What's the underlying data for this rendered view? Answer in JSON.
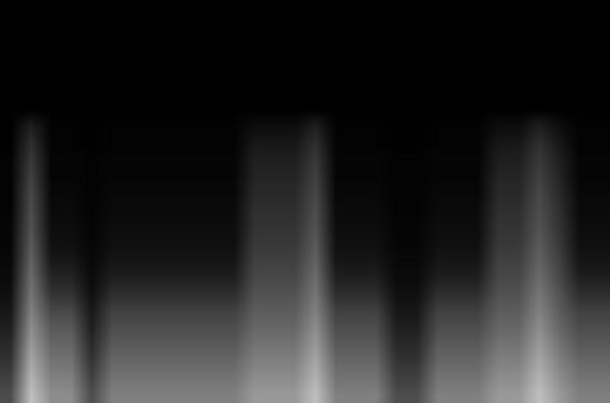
{
  "chart_data": {
    "type": "heatmap",
    "tick_labels": false,
    "zlim": [
      0,
      1
    ],
    "cells": [
      [
        0.3,
        0.75,
        0.55,
        0.55,
        0.3,
        0.5,
        0.5,
        0.5,
        0.5,
        0.5,
        0.5,
        0.5,
        0.6,
        0.6,
        0.6,
        0.75,
        0.5,
        0.5,
        0.5,
        0.3,
        0.3,
        0.5,
        0.5,
        0.5,
        0.6,
        0.6,
        0.75,
        0.6,
        0.5,
        0.5
      ],
      [
        0.25,
        0.7,
        0.5,
        0.5,
        0.25,
        0.45,
        0.45,
        0.45,
        0.45,
        0.45,
        0.45,
        0.45,
        0.55,
        0.55,
        0.55,
        0.7,
        0.45,
        0.45,
        0.45,
        0.25,
        0.25,
        0.45,
        0.45,
        0.45,
        0.55,
        0.55,
        0.7,
        0.55,
        0.45,
        0.45
      ],
      [
        0.2,
        0.65,
        0.45,
        0.45,
        0.2,
        0.4,
        0.4,
        0.4,
        0.4,
        0.4,
        0.4,
        0.4,
        0.5,
        0.5,
        0.5,
        0.65,
        0.4,
        0.4,
        0.4,
        0.2,
        0.2,
        0.4,
        0.4,
        0.4,
        0.5,
        0.5,
        0.65,
        0.5,
        0.4,
        0.4
      ],
      [
        0.16,
        0.6,
        0.4,
        0.4,
        0.16,
        0.35,
        0.35,
        0.35,
        0.35,
        0.35,
        0.35,
        0.35,
        0.45,
        0.45,
        0.45,
        0.6,
        0.35,
        0.35,
        0.35,
        0.16,
        0.16,
        0.35,
        0.35,
        0.35,
        0.45,
        0.45,
        0.6,
        0.45,
        0.35,
        0.35
      ],
      [
        0.12,
        0.55,
        0.35,
        0.35,
        0.12,
        0.3,
        0.3,
        0.3,
        0.3,
        0.3,
        0.3,
        0.3,
        0.4,
        0.4,
        0.4,
        0.55,
        0.3,
        0.3,
        0.3,
        0.12,
        0.12,
        0.3,
        0.3,
        0.3,
        0.4,
        0.4,
        0.55,
        0.4,
        0.3,
        0.3
      ],
      [
        0.09,
        0.5,
        0.28,
        0.28,
        0.09,
        0.25,
        0.25,
        0.25,
        0.25,
        0.25,
        0.25,
        0.25,
        0.36,
        0.36,
        0.36,
        0.5,
        0.25,
        0.25,
        0.25,
        0.09,
        0.09,
        0.25,
        0.25,
        0.25,
        0.36,
        0.36,
        0.5,
        0.36,
        0.25,
        0.25
      ],
      [
        0.06,
        0.46,
        0.2,
        0.2,
        0.06,
        0.18,
        0.18,
        0.18,
        0.18,
        0.18,
        0.18,
        0.18,
        0.32,
        0.32,
        0.32,
        0.46,
        0.18,
        0.18,
        0.18,
        0.06,
        0.06,
        0.18,
        0.18,
        0.18,
        0.32,
        0.32,
        0.46,
        0.32,
        0.18,
        0.18
      ],
      [
        0.04,
        0.42,
        0.14,
        0.14,
        0.04,
        0.12,
        0.12,
        0.12,
        0.12,
        0.12,
        0.12,
        0.12,
        0.28,
        0.28,
        0.28,
        0.42,
        0.12,
        0.12,
        0.12,
        0.04,
        0.04,
        0.12,
        0.12,
        0.12,
        0.28,
        0.28,
        0.42,
        0.28,
        0.12,
        0.12
      ],
      [
        0.03,
        0.38,
        0.09,
        0.09,
        0.03,
        0.08,
        0.08,
        0.08,
        0.08,
        0.08,
        0.08,
        0.08,
        0.25,
        0.25,
        0.25,
        0.38,
        0.08,
        0.08,
        0.08,
        0.03,
        0.03,
        0.08,
        0.08,
        0.08,
        0.25,
        0.25,
        0.38,
        0.25,
        0.08,
        0.08
      ],
      [
        0.02,
        0.35,
        0.06,
        0.06,
        0.02,
        0.06,
        0.06,
        0.06,
        0.06,
        0.06,
        0.06,
        0.06,
        0.22,
        0.22,
        0.22,
        0.35,
        0.06,
        0.06,
        0.06,
        0.02,
        0.02,
        0.06,
        0.06,
        0.06,
        0.22,
        0.22,
        0.35,
        0.22,
        0.06,
        0.06
      ],
      [
        0.02,
        0.32,
        0.05,
        0.05,
        0.02,
        0.05,
        0.05,
        0.05,
        0.05,
        0.05,
        0.05,
        0.05,
        0.2,
        0.2,
        0.2,
        0.32,
        0.05,
        0.05,
        0.05,
        0.02,
        0.02,
        0.05,
        0.05,
        0.05,
        0.2,
        0.2,
        0.32,
        0.2,
        0.05,
        0.05
      ],
      [
        0.01,
        0.3,
        0.04,
        0.04,
        0.01,
        0.04,
        0.04,
        0.04,
        0.04,
        0.04,
        0.04,
        0.04,
        0.18,
        0.18,
        0.18,
        0.3,
        0.04,
        0.04,
        0.04,
        0.01,
        0.01,
        0.04,
        0.04,
        0.04,
        0.18,
        0.18,
        0.3,
        0.18,
        0.04,
        0.04
      ],
      [
        0.01,
        0.28,
        0.03,
        0.03,
        0.01,
        0.03,
        0.03,
        0.03,
        0.03,
        0.03,
        0.03,
        0.03,
        0.16,
        0.16,
        0.16,
        0.28,
        0.03,
        0.03,
        0.03,
        0.01,
        0.01,
        0.03,
        0.03,
        0.03,
        0.16,
        0.16,
        0.28,
        0.16,
        0.03,
        0.03
      ],
      [
        0.01,
        0.25,
        0.02,
        0.02,
        0.01,
        0.02,
        0.02,
        0.02,
        0.02,
        0.02,
        0.02,
        0.02,
        0.14,
        0.14,
        0.14,
        0.25,
        0.02,
        0.02,
        0.02,
        0.01,
        0.01,
        0.02,
        0.02,
        0.02,
        0.14,
        0.14,
        0.25,
        0.14,
        0.02,
        0.02
      ],
      [
        0.01,
        0.22,
        0.02,
        0.02,
        0.01,
        0.02,
        0.02,
        0.02,
        0.02,
        0.02,
        0.02,
        0.02,
        0.12,
        0.12,
        0.12,
        0.22,
        0.02,
        0.02,
        0.02,
        0.01,
        0.01,
        0.02,
        0.02,
        0.02,
        0.12,
        0.12,
        0.22,
        0.12,
        0.02,
        0.02
      ],
      [
        0,
        0.18,
        0.01,
        0.01,
        0,
        0.01,
        0.01,
        0.01,
        0.01,
        0.01,
        0.01,
        0.01,
        0.09,
        0.09,
        0.09,
        0.18,
        0.01,
        0.01,
        0.01,
        0,
        0,
        0.01,
        0.01,
        0.01,
        0.09,
        0.09,
        0.18,
        0.09,
        0.01,
        0.01
      ],
      [
        0,
        0.12,
        0.01,
        0.01,
        0,
        0.01,
        0.01,
        0.01,
        0.01,
        0.01,
        0.01,
        0.01,
        0.05,
        0.05,
        0.05,
        0.12,
        0.01,
        0.01,
        0.01,
        0,
        0,
        0.01,
        0.01,
        0.01,
        0.05,
        0.05,
        0.12,
        0.05,
        0.01,
        0.01
      ],
      [
        0,
        0,
        0,
        0,
        0,
        0,
        0,
        0,
        0,
        0,
        0,
        0,
        0,
        0,
        0,
        0,
        0,
        0,
        0,
        0,
        0,
        0,
        0,
        0,
        0,
        0,
        0,
        0,
        0,
        0
      ],
      [
        0,
        0,
        0,
        0,
        0,
        0,
        0,
        0,
        0,
        0,
        0,
        0,
        0,
        0,
        0,
        0,
        0,
        0,
        0,
        0,
        0,
        0,
        0,
        0,
        0,
        0,
        0,
        0,
        0,
        0
      ],
      [
        0,
        0,
        0,
        0,
        0,
        0,
        0,
        0,
        0,
        0,
        0,
        0,
        0,
        0,
        0,
        0,
        0,
        0,
        0,
        0,
        0,
        0,
        0,
        0,
        0,
        0,
        0,
        0,
        0,
        0
      ],
      [
        0,
        0,
        0,
        0,
        0,
        0,
        0,
        0,
        0,
        0,
        0,
        0,
        0,
        0,
        0,
        0,
        0,
        0,
        0,
        0,
        0,
        0,
        0,
        0,
        0,
        0,
        0,
        0,
        0,
        0
      ],
      [
        0,
        0,
        0,
        0,
        0,
        0,
        0,
        0,
        0,
        0,
        0,
        0,
        0,
        0,
        0,
        0,
        0,
        0,
        0,
        0,
        0,
        0,
        0,
        0,
        0,
        0,
        0,
        0,
        0,
        0
      ],
      [
        0,
        0,
        0,
        0,
        0,
        0,
        0,
        0,
        0,
        0,
        0,
        0,
        0,
        0,
        0,
        0,
        0,
        0,
        0,
        0,
        0,
        0,
        0,
        0,
        0,
        0,
        0,
        0,
        0,
        0
      ],
      [
        0,
        0,
        0,
        0,
        0,
        0,
        0,
        0,
        0,
        0,
        0,
        0,
        0,
        0,
        0,
        0,
        0,
        0,
        0,
        0,
        0,
        0,
        0,
        0,
        0,
        0,
        0,
        0,
        0,
        0
      ]
    ]
  }
}
